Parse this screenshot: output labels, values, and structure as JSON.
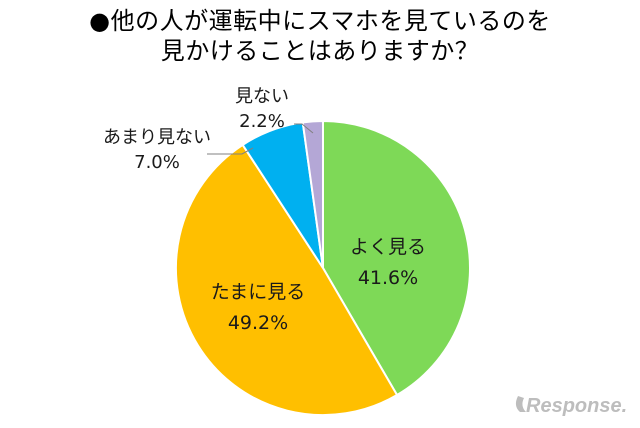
{
  "title": {
    "line1": "●他の人が運転中にスマホを見ているのを",
    "line2": "見かけることはありますか？"
  },
  "chart_data": {
    "type": "pie",
    "title": "●他の人が運転中にスマホを見ているのを見かけることはありますか？",
    "slices": [
      {
        "label": "よく見る",
        "value": 41.6,
        "value_text": "41.6%",
        "color": "#7ed957"
      },
      {
        "label": "たまに見る",
        "value": 49.2,
        "value_text": "49.2%",
        "color": "#ffbf00"
      },
      {
        "label": "あまり見ない",
        "value": 7.0,
        "value_text": "7.0%",
        "color": "#00b0f0"
      },
      {
        "label": "見ない",
        "value": 2.2,
        "value_text": "2.2%",
        "color": "#b4a7d6"
      }
    ],
    "start": "12 o'clock",
    "direction": "clockwise"
  },
  "watermark": {
    "text": "Response.",
    "icon": "response-logo-swoosh-icon"
  }
}
